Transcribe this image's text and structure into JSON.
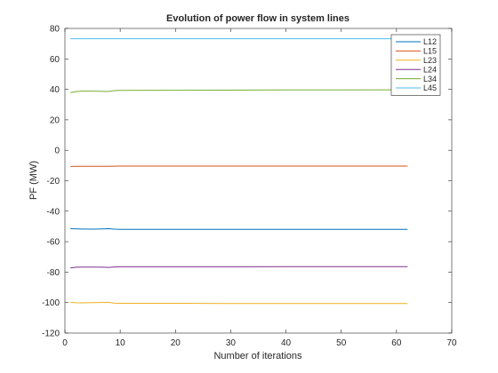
{
  "chart_data": {
    "type": "line",
    "title": "Evolution of power flow in system lines",
    "xlabel": "Number of iterations",
    "ylabel": "PF (MW)",
    "xlim": [
      0,
      70
    ],
    "ylim": [
      -120,
      80
    ],
    "xticks": [
      0,
      10,
      20,
      30,
      40,
      50,
      60,
      70
    ],
    "yticks": [
      -120,
      -100,
      -80,
      -60,
      -40,
      -20,
      0,
      20,
      40,
      60,
      80
    ],
    "grid": false,
    "legend_position": "top-right",
    "series": [
      {
        "name": "L12",
        "color": "#0072BD",
        "x": [
          1,
          3,
          5,
          7,
          8,
          9,
          10,
          20,
          30,
          40,
          50,
          62
        ],
        "y": [
          -51.5,
          -51.7,
          -51.8,
          -51.6,
          -51.5,
          -51.8,
          -51.9,
          -51.9,
          -51.9,
          -51.9,
          -51.9,
          -51.9
        ]
      },
      {
        "name": "L15",
        "color": "#D95319",
        "x": [
          1,
          3,
          5,
          8,
          10,
          20,
          30,
          40,
          50,
          62
        ],
        "y": [
          -10.6,
          -10.5,
          -10.5,
          -10.5,
          -10.4,
          -10.4,
          -10.4,
          -10.4,
          -10.4,
          -10.4
        ]
      },
      {
        "name": "L23",
        "color": "#EDB120",
        "x": [
          1,
          2,
          3,
          5,
          7,
          8,
          9,
          10,
          20,
          30,
          40,
          50,
          62
        ],
        "y": [
          -99.8,
          -100.1,
          -100.2,
          -100.0,
          -99.9,
          -99.9,
          -100.4,
          -100.5,
          -100.5,
          -100.6,
          -100.6,
          -100.6,
          -100.6
        ]
      },
      {
        "name": "L24",
        "color": "#7E2F8E",
        "x": [
          1,
          2,
          3,
          5,
          7,
          8,
          9,
          10,
          20,
          30,
          40,
          50,
          62
        ],
        "y": [
          -77.3,
          -76.8,
          -76.7,
          -76.7,
          -76.8,
          -76.9,
          -76.6,
          -76.5,
          -76.5,
          -76.5,
          -76.4,
          -76.4,
          -76.4
        ]
      },
      {
        "name": "L34",
        "color": "#77AC30",
        "x": [
          1,
          2,
          3,
          5,
          7,
          8,
          9,
          10,
          20,
          30,
          40,
          50,
          62
        ],
        "y": [
          37.8,
          38.5,
          38.8,
          38.8,
          38.7,
          38.6,
          39.2,
          39.3,
          39.4,
          39.5,
          39.6,
          39.6,
          39.7
        ]
      },
      {
        "name": "L45",
        "color": "#4DBEEE",
        "x": [
          1,
          5,
          10,
          20,
          30,
          40,
          50,
          62
        ],
        "y": [
          73.2,
          73.2,
          73.2,
          73.2,
          73.2,
          73.2,
          73.2,
          73.2
        ]
      }
    ]
  }
}
